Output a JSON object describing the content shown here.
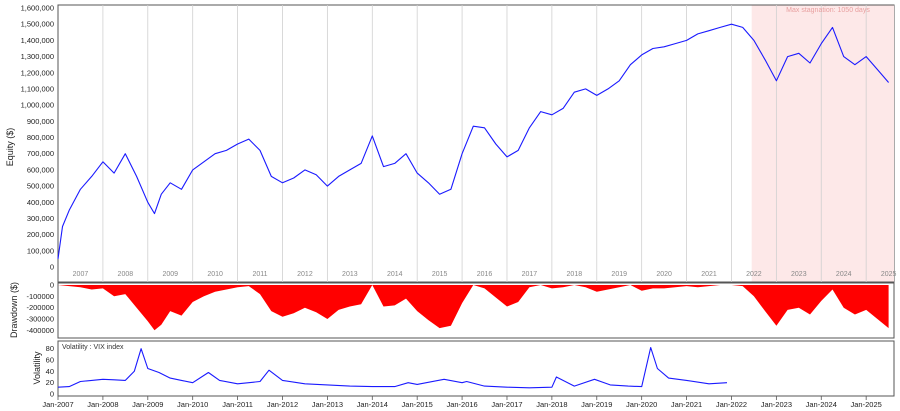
{
  "chart_data": [
    {
      "type": "line",
      "panel": "equity",
      "ylabel": "Equity ($)",
      "ylim": [
        0,
        1600000
      ],
      "yticks": [
        "0",
        "100,000",
        "200,000",
        "300,000",
        "400,000",
        "500,000",
        "600,000",
        "700,000",
        "800,000",
        "900,000",
        "1,000,000",
        "1,100,000",
        "1,200,000",
        "1,300,000",
        "1,400,000",
        "1,500,000",
        "1,600,000"
      ],
      "year_labels": [
        "2007",
        "2008",
        "2009",
        "2010",
        "2011",
        "2012",
        "2013",
        "2014",
        "2015",
        "2016",
        "2017",
        "2018",
        "2019",
        "2020",
        "2021",
        "2022",
        "2023",
        "2024",
        "2025"
      ],
      "annotation": "Max stagnation: 1050 days",
      "stagnation_period": [
        "2022-06",
        "2025-06"
      ],
      "line_color": "#1a1aff",
      "shade_color": "#fde8e8",
      "x": [
        2007.0,
        2007.1,
        2007.25,
        2007.5,
        2007.75,
        2008.0,
        2008.25,
        2008.5,
        2008.75,
        2009.0,
        2009.15,
        2009.3,
        2009.5,
        2009.75,
        2010.0,
        2010.25,
        2010.5,
        2010.75,
        2011.0,
        2011.25,
        2011.5,
        2011.75,
        2012.0,
        2012.25,
        2012.5,
        2012.75,
        2013.0,
        2013.25,
        2013.5,
        2013.75,
        2014.0,
        2014.25,
        2014.5,
        2014.75,
        2015.0,
        2015.25,
        2015.5,
        2015.75,
        2016.0,
        2016.25,
        2016.5,
        2016.75,
        2017.0,
        2017.25,
        2017.5,
        2017.75,
        2018.0,
        2018.25,
        2018.5,
        2018.75,
        2019.0,
        2019.25,
        2019.5,
        2019.75,
        2020.0,
        2020.25,
        2020.5,
        2020.75,
        2021.0,
        2021.25,
        2021.5,
        2021.75,
        2022.0,
        2022.25,
        2022.5,
        2022.75,
        2023.0,
        2023.25,
        2023.5,
        2023.75,
        2024.0,
        2024.25,
        2024.5,
        2024.75,
        2025.0,
        2025.25,
        2025.5
      ],
      "values": [
        50000,
        250000,
        350000,
        480000,
        560000,
        650000,
        580000,
        700000,
        560000,
        400000,
        330000,
        450000,
        520000,
        480000,
        600000,
        650000,
        700000,
        720000,
        760000,
        790000,
        720000,
        560000,
        520000,
        550000,
        600000,
        570000,
        500000,
        560000,
        600000,
        640000,
        810000,
        620000,
        640000,
        700000,
        580000,
        520000,
        450000,
        480000,
        700000,
        870000,
        860000,
        760000,
        680000,
        720000,
        860000,
        960000,
        940000,
        980000,
        1080000,
        1100000,
        1060000,
        1100000,
        1150000,
        1250000,
        1310000,
        1350000,
        1360000,
        1380000,
        1400000,
        1440000,
        1460000,
        1480000,
        1500000,
        1480000,
        1400000,
        1280000,
        1150000,
        1300000,
        1320000,
        1260000,
        1380000,
        1480000,
        1300000,
        1250000,
        1300000,
        1220000,
        1140000
      ]
    },
    {
      "type": "area",
      "panel": "drawdown",
      "ylabel": "Drawdown ($)",
      "ylim": [
        -450000,
        0
      ],
      "yticks": [
        "0",
        "-100000",
        "-200000",
        "-300000",
        "-400000"
      ],
      "fill_color": "#ff0000",
      "x": [
        2007.0,
        2007.25,
        2007.5,
        2007.75,
        2008.0,
        2008.25,
        2008.5,
        2008.75,
        2009.0,
        2009.15,
        2009.3,
        2009.5,
        2009.75,
        2010.0,
        2010.25,
        2010.5,
        2010.75,
        2011.0,
        2011.25,
        2011.5,
        2011.75,
        2012.0,
        2012.25,
        2012.5,
        2012.75,
        2013.0,
        2013.25,
        2013.5,
        2013.75,
        2014.0,
        2014.25,
        2014.5,
        2014.75,
        2015.0,
        2015.25,
        2015.5,
        2015.75,
        2016.0,
        2016.25,
        2016.5,
        2016.75,
        2017.0,
        2017.25,
        2017.5,
        2017.75,
        2018.0,
        2018.25,
        2018.5,
        2018.75,
        2019.0,
        2019.25,
        2019.5,
        2019.75,
        2020.0,
        2020.25,
        2020.5,
        2020.75,
        2021.0,
        2021.25,
        2021.5,
        2021.75,
        2022.0,
        2022.25,
        2022.5,
        2022.75,
        2023.0,
        2023.25,
        2023.5,
        2023.75,
        2024.0,
        2024.25,
        2024.5,
        2024.75,
        2025.0,
        2025.25,
        2025.5
      ],
      "values": [
        0,
        -10000,
        -20000,
        -40000,
        -30000,
        -100000,
        -80000,
        -200000,
        -320000,
        -400000,
        -350000,
        -230000,
        -270000,
        -150000,
        -100000,
        -60000,
        -40000,
        -20000,
        -10000,
        -80000,
        -230000,
        -280000,
        -250000,
        -200000,
        -240000,
        -300000,
        -220000,
        -190000,
        -170000,
        0,
        -190000,
        -180000,
        -120000,
        -230000,
        -310000,
        -380000,
        -360000,
        -160000,
        0,
        -30000,
        -110000,
        -190000,
        -150000,
        -20000,
        0,
        -30000,
        -20000,
        0,
        -20000,
        -60000,
        -40000,
        -20000,
        0,
        -50000,
        -30000,
        -30000,
        -20000,
        -10000,
        -20000,
        -10000,
        0,
        0,
        -10000,
        -100000,
        -230000,
        -360000,
        -220000,
        -200000,
        -260000,
        -140000,
        -40000,
        -200000,
        -260000,
        -220000,
        -300000,
        -380000
      ]
    },
    {
      "type": "line",
      "panel": "volatility",
      "ylabel": "Volatility",
      "legend": "Volatility : VIX index",
      "ylim": [
        0,
        90
      ],
      "yticks": [
        "0",
        "20",
        "40",
        "60",
        "80"
      ],
      "line_color": "#1a1aff",
      "xticks": [
        "Jan-2007",
        "Jan-2008",
        "Jan-2009",
        "Jan-2010",
        "Jan-2011",
        "Jan-2012",
        "Jan-2013",
        "Jan-2014",
        "Jan-2015",
        "Jan-2016",
        "Jan-2017",
        "Jan-2018",
        "Jan-2019",
        "Jan-2020",
        "Jan-2021",
        "Jan-2022",
        "Jan-2023",
        "Jan-2024",
        "Jan-2025"
      ],
      "x": [
        2007.0,
        2007.25,
        2007.5,
        2007.75,
        2008.0,
        2008.25,
        2008.5,
        2008.7,
        2008.85,
        2009.0,
        2009.25,
        2009.5,
        2009.75,
        2010.0,
        2010.35,
        2010.6,
        2011.0,
        2011.5,
        2011.7,
        2012.0,
        2012.5,
        2013.0,
        2013.5,
        2014.0,
        2014.5,
        2014.8,
        2015.0,
        2015.6,
        2016.0,
        2016.1,
        2016.5,
        2017.0,
        2017.5,
        2018.0,
        2018.1,
        2018.5,
        2018.95,
        2019.3,
        2019.7,
        2020.0,
        2020.2,
        2020.35,
        2020.6,
        2021.0,
        2021.5,
        2021.9
      ],
      "values": [
        12,
        13,
        22,
        24,
        26,
        25,
        24,
        40,
        80,
        45,
        38,
        28,
        24,
        20,
        38,
        24,
        18,
        22,
        42,
        24,
        18,
        16,
        14,
        13,
        13,
        20,
        17,
        26,
        20,
        22,
        14,
        12,
        11,
        12,
        30,
        14,
        26,
        16,
        14,
        13,
        82,
        45,
        28,
        24,
        18,
        20
      ]
    }
  ]
}
